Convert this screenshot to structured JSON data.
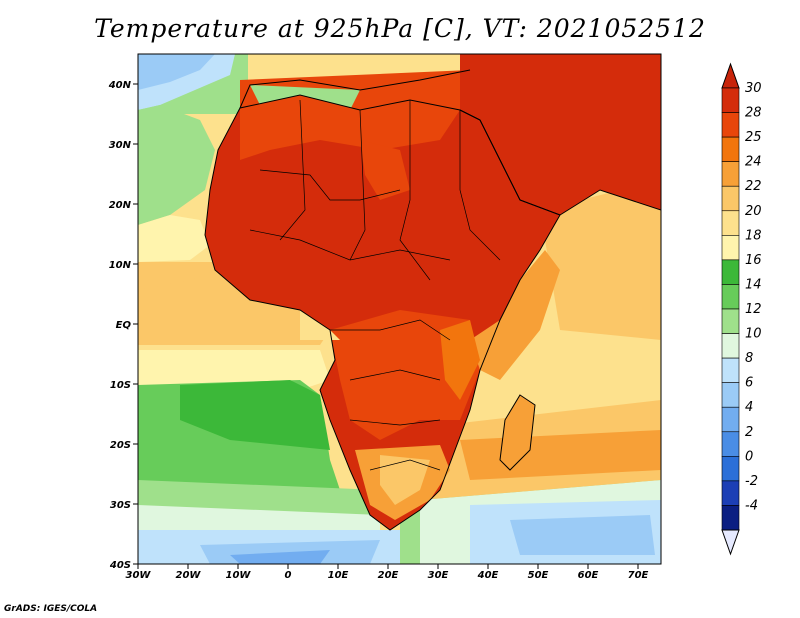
{
  "title": "Temperature at 925hPa [C], VT: 2021052512",
  "credit": "GrADS: IGES/COLA",
  "map": {
    "lon_labels": [
      "30W",
      "20W",
      "10W",
      "0",
      "10E",
      "20E",
      "30E",
      "40E",
      "50E",
      "60E",
      "70E"
    ],
    "lat_labels": [
      "40N",
      "30N",
      "20N",
      "10N",
      "EQ",
      "10S",
      "20S",
      "30S",
      "40S"
    ],
    "lon_range": [
      -30,
      75
    ],
    "lat_range": [
      -40,
      45
    ]
  },
  "colorbar": {
    "labels": [
      "30",
      "28",
      "25",
      "24",
      "22",
      "20",
      "18",
      "16",
      "14",
      "12",
      "10",
      "8",
      "6",
      "4",
      "2",
      "0",
      "-2",
      "-4"
    ],
    "colors": [
      "#d42c0b",
      "#e8460b",
      "#f2750d",
      "#f7a037",
      "#fbc768",
      "#fde18d",
      "#fff4ad",
      "#3cb839",
      "#67cc5a",
      "#9fe08b",
      "#e0f7df",
      "#bfe2fb",
      "#9bcbf6",
      "#72adf0",
      "#4a8de5",
      "#2b6fd8",
      "#1c3fb5",
      "#0b1f82"
    ],
    "over_color": "#c8240a",
    "under_color": "#e6eaff"
  }
}
